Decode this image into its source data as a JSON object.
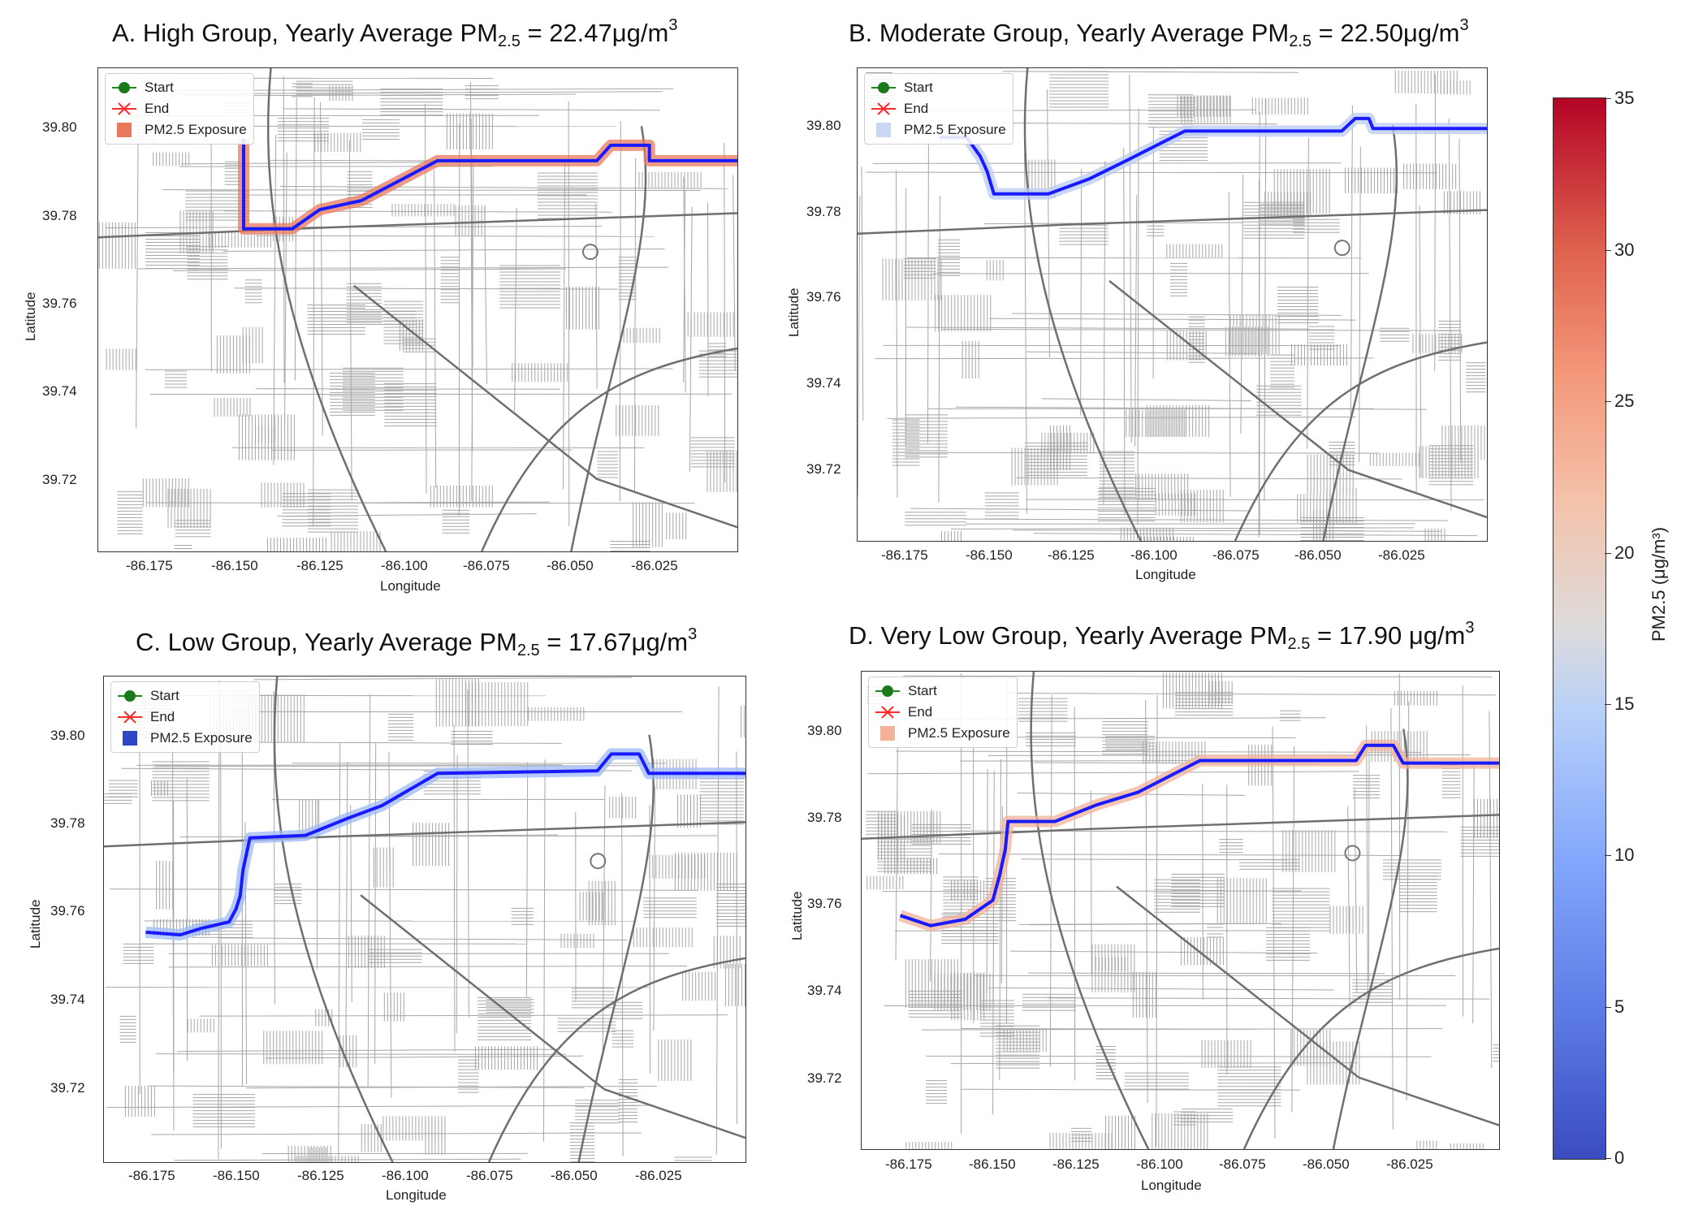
{
  "panels": [
    {
      "id": "A",
      "title_prefix": "A. High Group, Yearly Average PM",
      "title_sub": "2.5",
      "title_value": " = 22.47μg/m",
      "title_sup": "3",
      "legend": [
        "Start",
        "End",
        "PM2.5 Exposure"
      ],
      "exposure_color": "#e9785c",
      "y_ticks": [
        "39.80",
        "39.78",
        "39.76",
        "39.74",
        "39.72"
      ],
      "x_ticks": [
        "-86.175",
        "-86.150",
        "-86.125",
        "-86.100",
        "-86.075",
        "-86.050",
        "-86.025"
      ],
      "xlabel": "Longitude",
      "ylabel": "Latitude"
    },
    {
      "id": "B",
      "title_prefix": "B. Moderate Group, Yearly Average PM",
      "title_sub": "2.5",
      "title_value": " = 22.50μg/m",
      "title_sup": "3",
      "legend": [
        "Start",
        "End",
        "PM2.5 Exposure"
      ],
      "exposure_color": "#c9d7f3",
      "y_ticks": [
        "39.80",
        "39.78",
        "39.76",
        "39.74",
        "39.72"
      ],
      "x_ticks": [
        "-86.175",
        "-86.150",
        "-86.125",
        "-86.100",
        "-86.075",
        "-86.050",
        "-86.025"
      ],
      "xlabel": "Longitude",
      "ylabel": "Latitude"
    },
    {
      "id": "C",
      "title_prefix": "C. Low Group, Yearly Average PM",
      "title_sub": "2.5",
      "title_value": " = 17.67μg/m",
      "title_sup": "3",
      "legend": [
        "Start",
        "End",
        "PM2.5 Exposure"
      ],
      "exposure_color": "#2e47c8",
      "y_ticks": [
        "39.80",
        "39.78",
        "39.76",
        "39.74",
        "39.72"
      ],
      "x_ticks": [
        "-86.175",
        "-86.150",
        "-86.125",
        "-86.100",
        "-86.075",
        "-86.050",
        "-86.025"
      ],
      "xlabel": "Longitude",
      "ylabel": "Latitude"
    },
    {
      "id": "D",
      "title_prefix": "D. Very Low Group, Yearly Average PM",
      "title_sub": "2.5",
      "title_value": " = 17.90 μg/m",
      "title_sup": "3",
      "legend": [
        "Start",
        "End",
        "PM2.5 Exposure"
      ],
      "exposure_color": "#f2b29a",
      "y_ticks": [
        "39.80",
        "39.78",
        "39.76",
        "39.74",
        "39.72"
      ],
      "x_ticks": [
        "-86.175",
        "-86.150",
        "-86.125",
        "-86.100",
        "-86.075",
        "-86.050",
        "-86.025"
      ],
      "xlabel": "Longitude",
      "ylabel": "Latitude"
    }
  ],
  "colorbar": {
    "label": "PM2.5 (μg/m³)",
    "ticks": [
      "35",
      "30",
      "25",
      "20",
      "15",
      "10",
      "5",
      "0"
    ],
    "range": [
      0,
      35
    ],
    "colors": [
      "#3a4cc0",
      "#dddcdc",
      "#b40426"
    ]
  }
}
